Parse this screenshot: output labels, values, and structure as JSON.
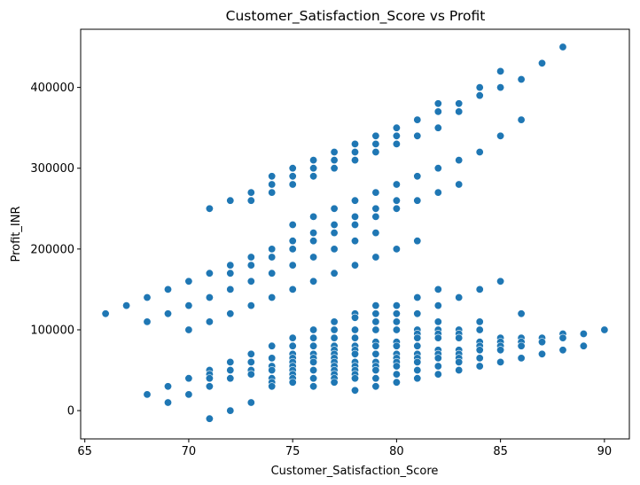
{
  "chart_data": {
    "type": "scatter",
    "title": "Customer_Satisfaction_Score vs Profit",
    "xlabel": "Customer_Satisfaction_Score",
    "ylabel": "Profit_INR",
    "xlim": [
      64.8,
      91.2
    ],
    "ylim": [
      -35000,
      472000
    ],
    "xticks": [
      65,
      70,
      75,
      80,
      85,
      90
    ],
    "yticks": [
      0,
      100000,
      200000,
      300000,
      400000
    ],
    "grid": false,
    "legend": "none",
    "marker_color": "#1f77b4",
    "series": [
      {
        "points": [
          [
            66,
            120000
          ],
          [
            67,
            130000
          ],
          [
            68,
            140000
          ],
          [
            68,
            110000
          ],
          [
            68,
            20000
          ],
          [
            69,
            150000
          ],
          [
            69,
            120000
          ],
          [
            69,
            30000
          ],
          [
            69,
            10000
          ],
          [
            70,
            160000
          ],
          [
            70,
            130000
          ],
          [
            70,
            100000
          ],
          [
            70,
            40000
          ],
          [
            70,
            20000
          ],
          [
            71,
            250000
          ],
          [
            71,
            170000
          ],
          [
            71,
            140000
          ],
          [
            71,
            110000
          ],
          [
            71,
            50000
          ],
          [
            71,
            45000
          ],
          [
            71,
            40000
          ],
          [
            71,
            30000
          ],
          [
            71,
            -10000
          ],
          [
            72,
            260000
          ],
          [
            72,
            180000
          ],
          [
            72,
            170000
          ],
          [
            72,
            150000
          ],
          [
            72,
            120000
          ],
          [
            72,
            60000
          ],
          [
            72,
            50000
          ],
          [
            72,
            40000
          ],
          [
            72,
            0
          ],
          [
            73,
            270000
          ],
          [
            73,
            260000
          ],
          [
            73,
            190000
          ],
          [
            73,
            180000
          ],
          [
            73,
            160000
          ],
          [
            73,
            130000
          ],
          [
            73,
            70000
          ],
          [
            73,
            60000
          ],
          [
            73,
            50000
          ],
          [
            73,
            45000
          ],
          [
            73,
            10000
          ],
          [
            74,
            290000
          ],
          [
            74,
            280000
          ],
          [
            74,
            270000
          ],
          [
            74,
            200000
          ],
          [
            74,
            190000
          ],
          [
            74,
            170000
          ],
          [
            74,
            140000
          ],
          [
            74,
            80000
          ],
          [
            74,
            65000
          ],
          [
            74,
            55000
          ],
          [
            74,
            50000
          ],
          [
            74,
            40000
          ],
          [
            74,
            35000
          ],
          [
            74,
            30000
          ],
          [
            75,
            300000
          ],
          [
            75,
            290000
          ],
          [
            75,
            280000
          ],
          [
            75,
            230000
          ],
          [
            75,
            210000
          ],
          [
            75,
            200000
          ],
          [
            75,
            180000
          ],
          [
            75,
            150000
          ],
          [
            75,
            90000
          ],
          [
            75,
            80000
          ],
          [
            75,
            70000
          ],
          [
            75,
            65000
          ],
          [
            75,
            60000
          ],
          [
            75,
            55000
          ],
          [
            75,
            50000
          ],
          [
            75,
            45000
          ],
          [
            75,
            40000
          ],
          [
            75,
            35000
          ],
          [
            76,
            310000
          ],
          [
            76,
            300000
          ],
          [
            76,
            290000
          ],
          [
            76,
            240000
          ],
          [
            76,
            220000
          ],
          [
            76,
            210000
          ],
          [
            76,
            190000
          ],
          [
            76,
            160000
          ],
          [
            76,
            100000
          ],
          [
            76,
            90000
          ],
          [
            76,
            80000
          ],
          [
            76,
            70000
          ],
          [
            76,
            65000
          ],
          [
            76,
            60000
          ],
          [
            76,
            50000
          ],
          [
            76,
            40000
          ],
          [
            76,
            30000
          ],
          [
            77,
            320000
          ],
          [
            77,
            310000
          ],
          [
            77,
            300000
          ],
          [
            77,
            250000
          ],
          [
            77,
            230000
          ],
          [
            77,
            220000
          ],
          [
            77,
            200000
          ],
          [
            77,
            170000
          ],
          [
            77,
            110000
          ],
          [
            77,
            100000
          ],
          [
            77,
            90000
          ],
          [
            77,
            80000
          ],
          [
            77,
            75000
          ],
          [
            77,
            70000
          ],
          [
            77,
            65000
          ],
          [
            77,
            60000
          ],
          [
            77,
            55000
          ],
          [
            77,
            50000
          ],
          [
            77,
            45000
          ],
          [
            77,
            40000
          ],
          [
            77,
            35000
          ],
          [
            78,
            330000
          ],
          [
            78,
            320000
          ],
          [
            78,
            310000
          ],
          [
            78,
            260000
          ],
          [
            78,
            240000
          ],
          [
            78,
            230000
          ],
          [
            78,
            210000
          ],
          [
            78,
            180000
          ],
          [
            78,
            120000
          ],
          [
            78,
            115000
          ],
          [
            78,
            100000
          ],
          [
            78,
            90000
          ],
          [
            78,
            80000
          ],
          [
            78,
            75000
          ],
          [
            78,
            70000
          ],
          [
            78,
            60000
          ],
          [
            78,
            55000
          ],
          [
            78,
            50000
          ],
          [
            78,
            45000
          ],
          [
            78,
            40000
          ],
          [
            78,
            25000
          ],
          [
            79,
            340000
          ],
          [
            79,
            330000
          ],
          [
            79,
            320000
          ],
          [
            79,
            270000
          ],
          [
            79,
            250000
          ],
          [
            79,
            240000
          ],
          [
            79,
            220000
          ],
          [
            79,
            190000
          ],
          [
            79,
            130000
          ],
          [
            79,
            120000
          ],
          [
            79,
            110000
          ],
          [
            79,
            100000
          ],
          [
            79,
            85000
          ],
          [
            79,
            80000
          ],
          [
            79,
            70000
          ],
          [
            79,
            60000
          ],
          [
            79,
            55000
          ],
          [
            79,
            50000
          ],
          [
            79,
            40000
          ],
          [
            79,
            30000
          ],
          [
            80,
            350000
          ],
          [
            80,
            340000
          ],
          [
            80,
            330000
          ],
          [
            80,
            280000
          ],
          [
            80,
            260000
          ],
          [
            80,
            250000
          ],
          [
            80,
            200000
          ],
          [
            80,
            130000
          ],
          [
            80,
            120000
          ],
          [
            80,
            110000
          ],
          [
            80,
            100000
          ],
          [
            80,
            85000
          ],
          [
            80,
            80000
          ],
          [
            80,
            70000
          ],
          [
            80,
            65000
          ],
          [
            80,
            60000
          ],
          [
            80,
            55000
          ],
          [
            80,
            45000
          ],
          [
            80,
            35000
          ],
          [
            81,
            360000
          ],
          [
            81,
            340000
          ],
          [
            81,
            290000
          ],
          [
            81,
            260000
          ],
          [
            81,
            210000
          ],
          [
            81,
            140000
          ],
          [
            81,
            120000
          ],
          [
            81,
            100000
          ],
          [
            81,
            95000
          ],
          [
            81,
            90000
          ],
          [
            81,
            80000
          ],
          [
            81,
            70000
          ],
          [
            81,
            65000
          ],
          [
            81,
            60000
          ],
          [
            81,
            50000
          ],
          [
            81,
            40000
          ],
          [
            82,
            380000
          ],
          [
            82,
            370000
          ],
          [
            82,
            350000
          ],
          [
            82,
            300000
          ],
          [
            82,
            270000
          ],
          [
            82,
            150000
          ],
          [
            82,
            130000
          ],
          [
            82,
            110000
          ],
          [
            82,
            100000
          ],
          [
            82,
            95000
          ],
          [
            82,
            90000
          ],
          [
            82,
            75000
          ],
          [
            82,
            70000
          ],
          [
            82,
            65000
          ],
          [
            82,
            55000
          ],
          [
            82,
            45000
          ],
          [
            83,
            380000
          ],
          [
            83,
            370000
          ],
          [
            83,
            310000
          ],
          [
            83,
            280000
          ],
          [
            83,
            140000
          ],
          [
            83,
            100000
          ],
          [
            83,
            95000
          ],
          [
            83,
            90000
          ],
          [
            83,
            75000
          ],
          [
            83,
            70000
          ],
          [
            83,
            65000
          ],
          [
            83,
            60000
          ],
          [
            83,
            50000
          ],
          [
            84,
            400000
          ],
          [
            84,
            390000
          ],
          [
            84,
            320000
          ],
          [
            84,
            150000
          ],
          [
            84,
            110000
          ],
          [
            84,
            100000
          ],
          [
            84,
            85000
          ],
          [
            84,
            80000
          ],
          [
            84,
            75000
          ],
          [
            84,
            65000
          ],
          [
            84,
            55000
          ],
          [
            85,
            420000
          ],
          [
            85,
            400000
          ],
          [
            85,
            340000
          ],
          [
            85,
            160000
          ],
          [
            85,
            90000
          ],
          [
            85,
            85000
          ],
          [
            85,
            80000
          ],
          [
            85,
            75000
          ],
          [
            85,
            60000
          ],
          [
            86,
            410000
          ],
          [
            86,
            360000
          ],
          [
            86,
            120000
          ],
          [
            86,
            90000
          ],
          [
            86,
            85000
          ],
          [
            86,
            80000
          ],
          [
            86,
            65000
          ],
          [
            87,
            430000
          ],
          [
            87,
            90000
          ],
          [
            87,
            85000
          ],
          [
            87,
            70000
          ],
          [
            88,
            450000
          ],
          [
            88,
            95000
          ],
          [
            88,
            90000
          ],
          [
            88,
            75000
          ],
          [
            89,
            95000
          ],
          [
            89,
            80000
          ],
          [
            90,
            100000
          ]
        ]
      }
    ]
  }
}
